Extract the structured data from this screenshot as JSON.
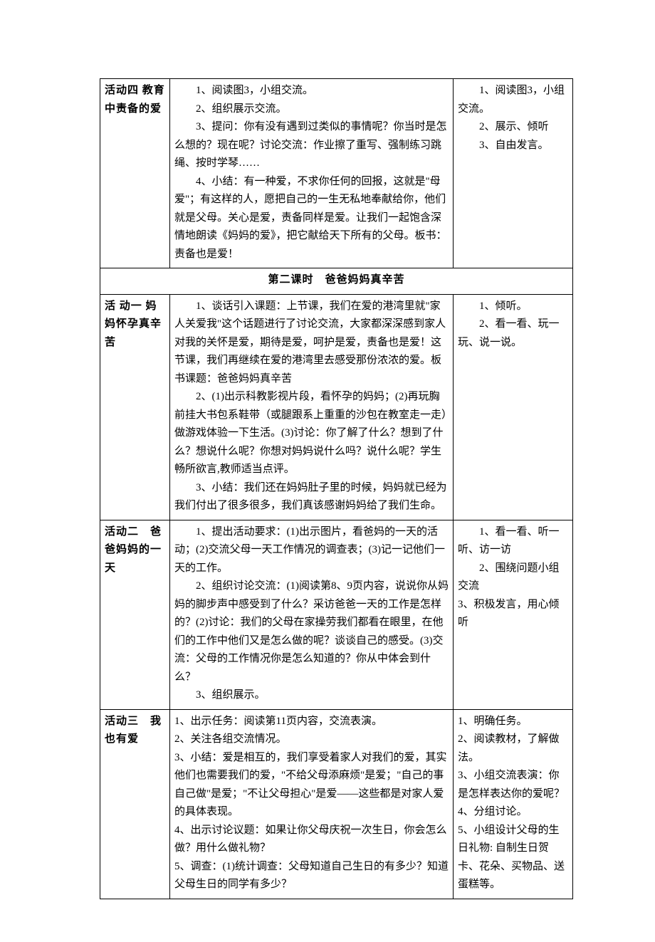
{
  "rows": [
    {
      "left": {
        "bold": "活动四 教育中责备的爱"
      },
      "mid": [
        {
          "cls": "indent",
          "text": "1、阅读图3，小组交流。"
        },
        {
          "cls": "indent",
          "text": "2、组织展示交流。"
        },
        {
          "cls": "indent",
          "text": "3、提问：你有没有遇到过类似的事情呢？你当时是怎么想的？现在呢？讨论交流：作业擦了重写、强制练习跳绳、按时学琴……"
        },
        {
          "cls": "indent",
          "text": "4、小结：有一种爱，不求你任何的回报，这就是\"母爱\"；有这样的人，愿把自己的一生无私地奉献给你，他们就是父母。关心是爱，责备同样是爱。让我们一起饱含深情地朗读《妈妈的爱》，把它献给天下所有的父母。板书：责备也是爱！"
        }
      ],
      "right": [
        {
          "cls": "indent",
          "text": "1、阅读图3，小组交流。"
        },
        {
          "cls": "indent",
          "text": "2、展示、倾听"
        },
        {
          "cls": "no-indent",
          "text": " "
        },
        {
          "cls": "indent",
          "text": "3、自由发言。"
        }
      ]
    },
    {
      "header": "第二课时　爸爸妈妈真辛苦"
    },
    {
      "left": {
        "bold": "活 动一 妈妈怀孕真辛苦"
      },
      "mid": [
        {
          "cls": "indent",
          "text": "1、谈话引入课题：上节课，我们在爱的港湾里就\"家人关爱我\"这个话题进行了讨论交流，大家都深深感到家人对我的关怀是爱，期待是爱，呵护是爱，责备也是爱！这节课，我们再继续在爱的港湾里去感受那份浓浓的爱。板书课题：爸爸妈妈真辛苦"
        },
        {
          "cls": "indent",
          "text": "2、(1)出示科教影视片段，看怀孕的妈妈；(2)再玩胸前挂大书包系鞋带（或腿跟系上重重的沙包在教室走一走）做游戏体验一下生活。(3)讨论：你了解了什么？想到了什么？想说什么呢？你想对妈妈说什么吗？说什么呢？学生畅所欲言,教师适当点评。"
        },
        {
          "cls": "indent",
          "text": "3、小结：我们还在妈妈肚子里的时候，妈妈就已经为我们付出了很多很多，我们真该感谢妈妈给了我们生命。"
        }
      ],
      "right": [
        {
          "cls": "indent",
          "text": "1、倾听。"
        },
        {
          "cls": "no-indent",
          "text": " "
        },
        {
          "cls": "no-indent",
          "text": " "
        },
        {
          "cls": "no-indent",
          "text": " "
        },
        {
          "cls": "no-indent",
          "text": " "
        },
        {
          "cls": "indent",
          "text": "2、看一看、玩一玩、说一说。"
        }
      ]
    },
    {
      "left": {
        "bold": "活动二　爸爸妈妈的一天"
      },
      "mid": [
        {
          "cls": "indent",
          "text": "1、提出活动要求：(1)出示图片，看爸妈的一天的活动；(2)交流父母一天工作情况的调查表；(3)记一记他们一天的工作。"
        },
        {
          "cls": "indent",
          "text": "2、组织讨论交流：(1)阅读第8、9页内容，说说你从妈妈的脚步声中感受到了什么？采访爸爸一天的工作是怎样的？(2)讨论：我们的父母在家操劳我们都看在眼里，在他们的工作中他们又是怎么做的呢？谈谈自己的感受。(3)交流：父母的工作情况你是怎么知道的？你从中体会到什么？"
        },
        {
          "cls": "indent",
          "text": "3、组织展示。"
        }
      ],
      "right": [
        {
          "cls": "indent",
          "text": "1、看一看、听一听、访一访"
        },
        {
          "cls": "indent",
          "text": "2、围绕问题小组交流"
        },
        {
          "cls": "no-indent",
          "text": "3、积极发言，用心倾听"
        }
      ]
    },
    {
      "left": {
        "bold": "活动三　我也有爱"
      },
      "mid": [
        {
          "cls": "no-indent",
          "text": "1、出示任务：阅读第11页内容，交流表演。"
        },
        {
          "cls": "no-indent",
          "text": "2、关注各组交流情况。"
        },
        {
          "cls": "no-indent",
          "text": "3、小结：爱是相互的，我们享受着家人对我们的爱，其实他们也需要我们的爱，\"不给父母添麻烦\"是爱；\"自己的事自己做\"是爱；\"不让父母担心\"是爱——这些都是对家人爱的具体表现。"
        },
        {
          "cls": "no-indent",
          "text": "4、出示讨论议题：如果让你父母庆祝一次生日，你会怎么做？用什么做礼物？"
        },
        {
          "cls": "no-indent",
          "text": "5、调查：(1)统计调查：父母知道自己生日的有多少？知道父母生日的同学有多少？"
        }
      ],
      "right": [
        {
          "cls": "no-indent",
          "text": "1、明确任务。"
        },
        {
          "cls": "no-indent",
          "text": "2、阅读教材，了解做法。"
        },
        {
          "cls": "no-indent",
          "text": "3、小组交流表演：你是怎样表达你的爱呢？"
        },
        {
          "cls": "no-indent",
          "text": "4、分组讨论。"
        },
        {
          "cls": "no-indent",
          "text": "5、小组设计父母的生日礼物: 自制生日贺卡、花朵、买物品、送蛋糕等。"
        }
      ]
    }
  ]
}
